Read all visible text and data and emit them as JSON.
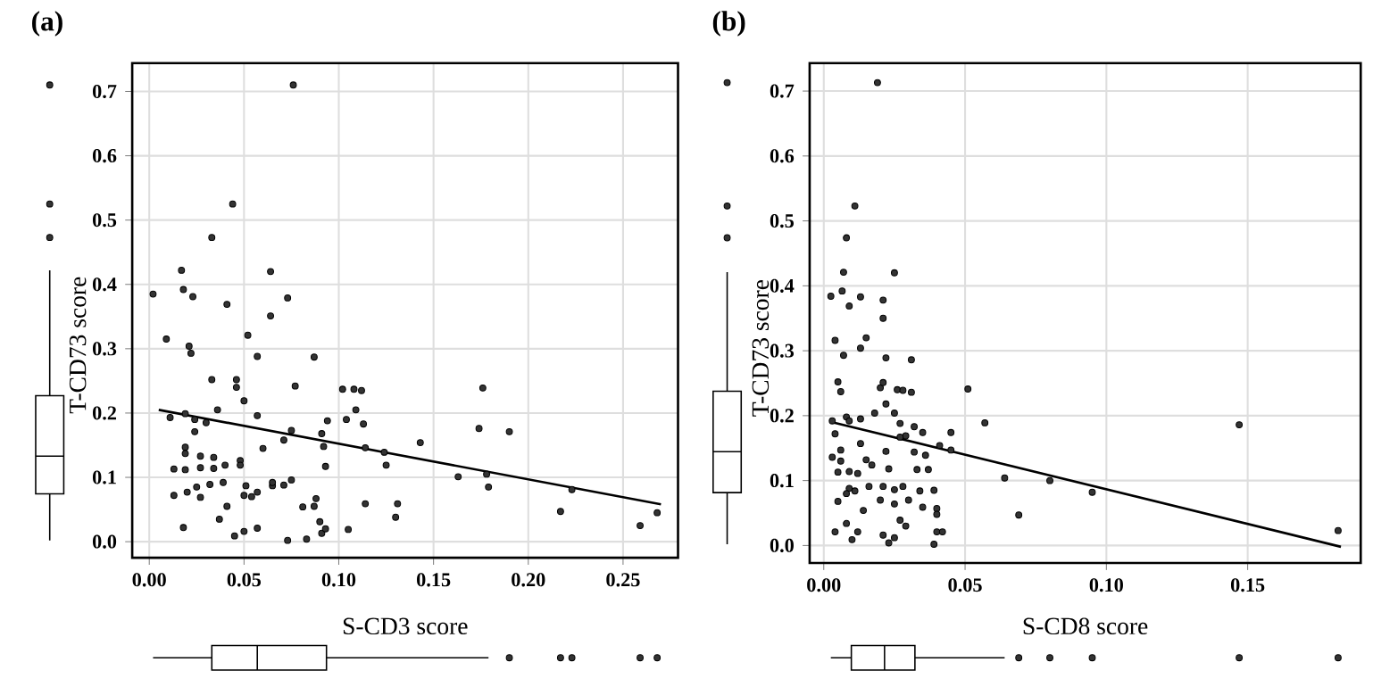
{
  "chart_data": [
    {
      "type": "scatter",
      "title": "(a)",
      "xlabel": "S-CD3 score",
      "ylabel": "T-CD73 score",
      "xlim": [
        -0.009,
        0.279
      ],
      "ylim": [
        -0.025,
        0.744
      ],
      "xticks": [
        {
          "value": 0,
          "label": "0.00"
        },
        {
          "value": 0.05,
          "label": "0.05"
        },
        {
          "value": 0.1,
          "label": "0.10"
        },
        {
          "value": 0.15,
          "label": "0.15"
        },
        {
          "value": 0.2,
          "label": "0.20"
        },
        {
          "value": 0.25,
          "label": "0.25"
        }
      ],
      "yticks": [
        {
          "value": 0,
          "label": "0.0"
        },
        {
          "value": 0.1,
          "label": "0.1"
        },
        {
          "value": 0.2,
          "label": "0.2"
        },
        {
          "value": 0.3,
          "label": "0.3"
        },
        {
          "value": 0.4,
          "label": "0.4"
        },
        {
          "value": 0.5,
          "label": "0.5"
        },
        {
          "value": 0.6,
          "label": "0.6"
        },
        {
          "value": 0.7,
          "label": "0.7"
        }
      ],
      "grid": true,
      "series": [
        {
          "color": "#333333",
          "marker": "circle",
          "x": [
            0.076,
            0.044,
            0.033,
            0.017,
            0.018,
            0.002,
            0.023,
            0.041,
            0.064,
            0.064,
            0.073,
            0.052,
            0.009,
            0.021,
            0.022,
            0.057,
            0.087,
            0.033,
            0.046,
            0.046,
            0.077,
            0.102,
            0.108,
            0.112,
            0.176,
            0.011,
            0.019,
            0.024,
            0.03,
            0.036,
            0.05,
            0.057,
            0.109,
            0.094,
            0.104,
            0.113,
            0.075,
            0.091,
            0.071,
            0.06,
            0.092,
            0.114,
            0.124,
            0.125,
            0.143,
            0.174,
            0.19,
            0.163,
            0.178,
            0.179,
            0.223,
            0.217,
            0.259,
            0.268,
            0.019,
            0.019,
            0.024,
            0.027,
            0.034,
            0.013,
            0.019,
            0.027,
            0.034,
            0.04,
            0.048,
            0.048,
            0.013,
            0.02,
            0.025,
            0.027,
            0.032,
            0.039,
            0.041,
            0.037,
            0.018,
            0.045,
            0.05,
            0.05,
            0.051,
            0.054,
            0.057,
            0.057,
            0.065,
            0.065,
            0.071,
            0.075,
            0.073,
            0.083,
            0.081,
            0.087,
            0.088,
            0.09,
            0.091,
            0.093,
            0.093,
            0.105,
            0.114,
            0.131,
            0.13
          ],
          "values": [
            0.71,
            0.525,
            0.473,
            0.422,
            0.392,
            0.385,
            0.381,
            0.369,
            0.42,
            0.351,
            0.379,
            0.321,
            0.315,
            0.304,
            0.293,
            0.288,
            0.287,
            0.252,
            0.252,
            0.24,
            0.242,
            0.237,
            0.237,
            0.235,
            0.239,
            0.193,
            0.199,
            0.19,
            0.185,
            0.205,
            0.219,
            0.196,
            0.205,
            0.188,
            0.19,
            0.183,
            0.173,
            0.168,
            0.158,
            0.145,
            0.148,
            0.146,
            0.139,
            0.119,
            0.154,
            0.176,
            0.171,
            0.101,
            0.105,
            0.085,
            0.081,
            0.047,
            0.025,
            0.045,
            0.147,
            0.137,
            0.171,
            0.133,
            0.131,
            0.113,
            0.112,
            0.115,
            0.114,
            0.119,
            0.126,
            0.119,
            0.072,
            0.077,
            0.085,
            0.069,
            0.089,
            0.092,
            0.055,
            0.035,
            0.022,
            0.009,
            0.016,
            0.072,
            0.087,
            0.07,
            0.077,
            0.021,
            0.087,
            0.092,
            0.088,
            0.096,
            0.002,
            0.004,
            0.054,
            0.055,
            0.067,
            0.031,
            0.013,
            0.02,
            0.117,
            0.019,
            0.059,
            0.059,
            0.038
          ]
        },
        {
          "type": "line",
          "marker": "none",
          "color": "#000000",
          "x": [
            0.005,
            0.27
          ],
          "values": [
            0.205,
            0.058
          ]
        }
      ]
    },
    {
      "type": "scatter",
      "title": "(b)",
      "xlabel": "S-CD8 score",
      "ylabel": "T-CD73 score",
      "xlim": [
        -0.005,
        0.19
      ],
      "ylim": [
        -0.027,
        0.743
      ],
      "xticks": [
        {
          "value": 0,
          "label": "0.00"
        },
        {
          "value": 0.05,
          "label": "0.05"
        },
        {
          "value": 0.1,
          "label": "0.10"
        },
        {
          "value": 0.15,
          "label": "0.15"
        }
      ],
      "yticks": [
        {
          "value": 0,
          "label": "0.0"
        },
        {
          "value": 0.1,
          "label": "0.1"
        },
        {
          "value": 0.2,
          "label": "0.2"
        },
        {
          "value": 0.3,
          "label": "0.3"
        },
        {
          "value": 0.4,
          "label": "0.4"
        },
        {
          "value": 0.5,
          "label": "0.5"
        },
        {
          "value": 0.6,
          "label": "0.6"
        },
        {
          "value": 0.7,
          "label": "0.7"
        }
      ],
      "grid": true,
      "series": [
        {
          "color": "#333333",
          "marker": "circle",
          "x": [
            0.019,
            0.011,
            0.008,
            0.007,
            0.0065,
            0.0025,
            0.009,
            0.013,
            0.025,
            0.021,
            0.021,
            0.015,
            0.004,
            0.013,
            0.007,
            0.022,
            0.031,
            0.005,
            0.006,
            0.02,
            0.021,
            0.026,
            0.028,
            0.031,
            0.051,
            0.057,
            0.147,
            0.003,
            0.008,
            0.009,
            0.013,
            0.018,
            0.022,
            0.025,
            0.027,
            0.032,
            0.004,
            0.013,
            0.029,
            0.035,
            0.027,
            0.041,
            0.045,
            0.045,
            0.003,
            0.006,
            0.006,
            0.015,
            0.017,
            0.022,
            0.032,
            0.036,
            0.033,
            0.037,
            0.023,
            0.005,
            0.009,
            0.012,
            0.021,
            0.025,
            0.028,
            0.03,
            0.009,
            0.011,
            0.008,
            0.005,
            0.016,
            0.02,
            0.025,
            0.034,
            0.039,
            0.04,
            0.04,
            0.035,
            0.014,
            0.008,
            0.027,
            0.029,
            0.004,
            0.012,
            0.01,
            0.021,
            0.025,
            0.023,
            0.04,
            0.042,
            0.039,
            0.064,
            0.069,
            0.08,
            0.095,
            0.182
          ],
          "values": [
            0.713,
            0.523,
            0.474,
            0.421,
            0.392,
            0.384,
            0.369,
            0.383,
            0.42,
            0.378,
            0.35,
            0.32,
            0.316,
            0.304,
            0.293,
            0.289,
            0.286,
            0.252,
            0.237,
            0.243,
            0.251,
            0.24,
            0.239,
            0.236,
            0.241,
            0.189,
            0.186,
            0.192,
            0.198,
            0.192,
            0.195,
            0.204,
            0.218,
            0.204,
            0.188,
            0.183,
            0.172,
            0.157,
            0.169,
            0.174,
            0.167,
            0.154,
            0.174,
            0.147,
            0.136,
            0.147,
            0.13,
            0.132,
            0.124,
            0.145,
            0.144,
            0.139,
            0.117,
            0.117,
            0.118,
            0.113,
            0.114,
            0.111,
            0.091,
            0.086,
            0.091,
            0.07,
            0.088,
            0.084,
            0.08,
            0.068,
            0.091,
            0.07,
            0.064,
            0.084,
            0.085,
            0.057,
            0.048,
            0.059,
            0.054,
            0.034,
            0.039,
            0.03,
            0.021,
            0.021,
            0.009,
            0.016,
            0.012,
            0.004,
            0.021,
            0.021,
            0.002,
            0.104,
            0.047,
            0.1,
            0.082,
            0.023
          ]
        },
        {
          "type": "line",
          "marker": "none",
          "color": "#000000",
          "x": [
            0.003,
            0.183
          ],
          "values": [
            0.19,
            -0.002
          ]
        }
      ]
    }
  ]
}
